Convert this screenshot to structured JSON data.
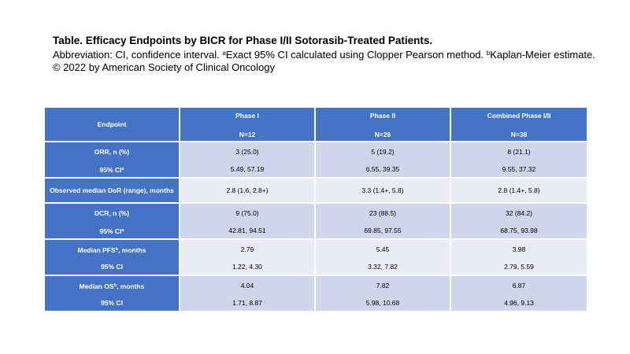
{
  "caption": {
    "title": "Table. Efficacy Endpoints by BICR for Phase I/II Sotorasib-Treated Patients.",
    "abbrev_prefix": "Abbreviation: CI, confidence interval. ",
    "note_a_mark": "a",
    "note_a_text": "Exact 95% CI calculated using Clopper Pearson method. ",
    "note_b_mark": "b",
    "note_b_text": "Kaplan-Meier estimate.",
    "copyright": "© 2022 by American Society of Clinical Oncology"
  },
  "table": {
    "header": {
      "endpoint": "Endpoint",
      "columns": [
        {
          "name": "Phase I",
          "n": "N=12"
        },
        {
          "name": "Phase II",
          "n": "N=26"
        },
        {
          "name": "Combined Phase I/II",
          "n": "N=38"
        }
      ]
    },
    "rows": [
      {
        "label1": "ORR, n (%)",
        "label2": "95% CI",
        "label2_sup": "a",
        "values1": [
          "3 (25.0)",
          "5 (19.2)",
          "8 (21.1)"
        ],
        "values2": [
          "5.49, 57.19",
          "6.55, 39.35",
          "9.55, 37.32"
        ]
      },
      {
        "label1": "Observed median DoR (range), months",
        "values1": [
          "2.8 (1.6, 2.8+)",
          "3.3 (1.4+, 5.8)",
          "2.8 (1.4+, 5.8)"
        ]
      },
      {
        "label1": "DCR, n (%)",
        "label2": "95% CI",
        "label2_sup": "a",
        "values1": [
          "9 (75.0)",
          "23 (88.5)",
          "32 (84.2)"
        ],
        "values2": [
          "42.81, 94.51",
          "69.85, 97.55",
          "68.75, 93.98"
        ]
      },
      {
        "label1": "Median PFS",
        "label1_sup": "b",
        "label1_suffix": ", months",
        "label2": "95% CI",
        "values1": [
          "2.79",
          "5.45",
          "3.98"
        ],
        "values2": [
          "1.22, 4.30",
          "3.32, 7.82",
          "2.79, 5.59"
        ]
      },
      {
        "label1": "Median OS",
        "label1_sup": "b",
        "label1_suffix": ", months",
        "label2": "95% CI",
        "values1": [
          "4.04",
          "7.82",
          "6.87"
        ],
        "values2": [
          "1.71, 8.87",
          "5.98, 10.68",
          "4.96, 9.13"
        ]
      }
    ]
  }
}
